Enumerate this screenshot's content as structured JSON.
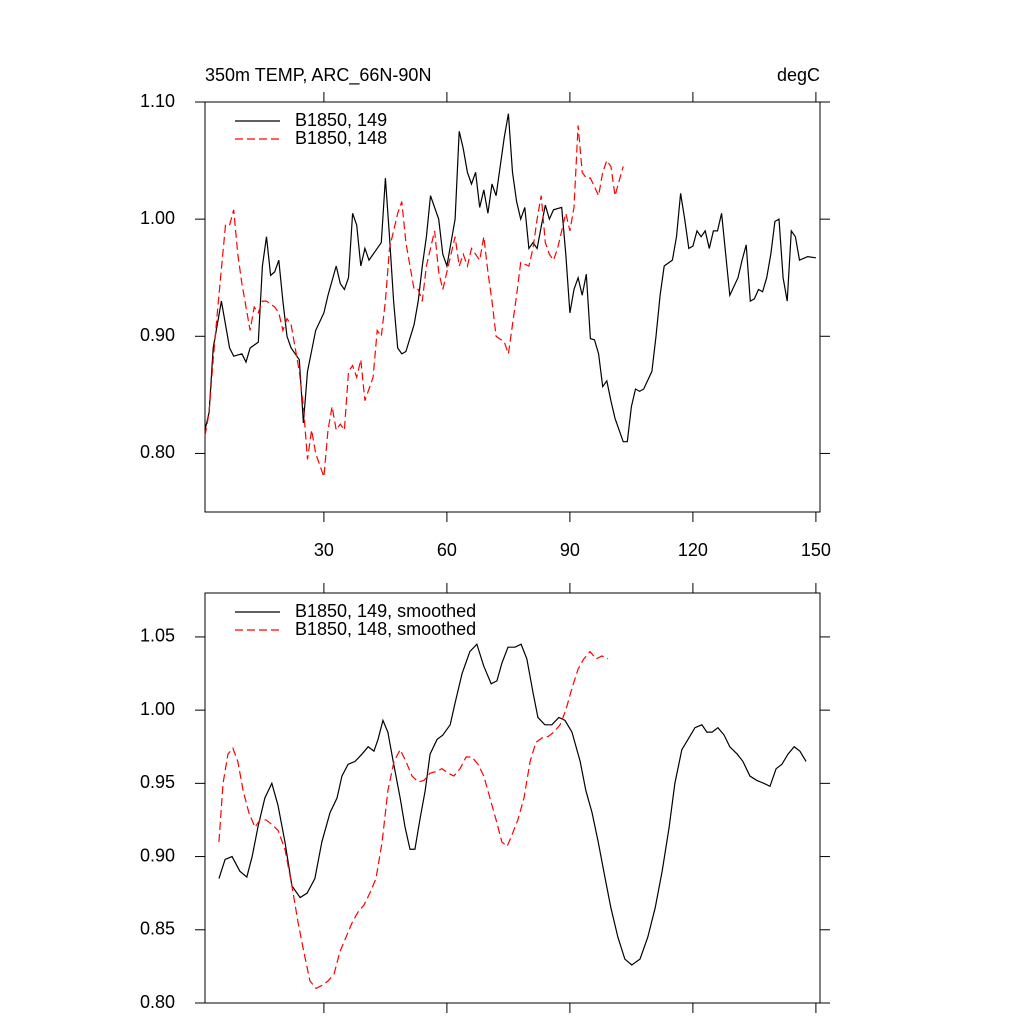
{
  "chart_data": [
    {
      "type": "line",
      "title": "350m TEMP, ARC_66N-90N",
      "units_label": "degC",
      "xlim": [
        1,
        151
      ],
      "xticks": [
        30,
        60,
        90,
        120,
        150
      ],
      "xtick_labels": true,
      "ylim": [
        0.75,
        1.1
      ],
      "yticks": [
        {
          "value": 0.8,
          "label": "0.80"
        },
        {
          "value": 0.9,
          "label": "0.90"
        },
        {
          "value": 1.0,
          "label": "1.00"
        },
        {
          "value": 1.1,
          "label": "1.10"
        }
      ],
      "legend": "top-left",
      "series": [
        {
          "name": "B1850, 149",
          "color": "#000000",
          "dashed": false,
          "x": [
            1,
            2,
            3,
            5,
            7,
            8,
            10,
            11,
            12,
            14,
            15,
            16,
            17,
            18,
            19,
            20,
            21,
            22,
            24,
            25,
            26,
            28,
            30,
            31,
            33,
            34,
            35,
            36,
            37,
            38,
            39,
            40,
            41,
            43,
            44,
            45,
            46,
            47,
            48,
            49,
            50,
            52,
            53,
            54,
            55,
            56,
            58,
            59,
            60,
            61,
            62,
            63,
            64,
            65,
            66,
            67,
            68,
            69,
            70,
            71,
            72,
            74,
            75,
            76,
            77,
            78,
            79,
            80,
            81,
            82,
            84,
            85,
            86,
            88,
            89,
            90,
            91,
            92,
            93,
            94,
            95,
            96,
            97,
            98,
            99,
            100,
            101,
            103,
            104,
            105,
            106,
            107,
            108,
            110,
            111,
            112,
            113,
            115,
            116,
            117,
            118,
            119,
            120,
            121,
            122,
            123,
            124,
            125,
            126,
            127,
            128,
            129,
            131,
            132,
            133,
            134,
            135,
            136,
            137,
            138,
            139,
            140,
            141,
            142,
            143,
            144,
            145,
            146,
            148,
            150
          ],
          "values": [
            0.82,
            0.835,
            0.89,
            0.93,
            0.89,
            0.883,
            0.885,
            0.878,
            0.89,
            0.895,
            0.96,
            0.985,
            0.952,
            0.955,
            0.965,
            0.93,
            0.9,
            0.89,
            0.88,
            0.826,
            0.87,
            0.905,
            0.92,
            0.935,
            0.96,
            0.945,
            0.94,
            0.95,
            1.005,
            0.995,
            0.96,
            0.975,
            0.965,
            0.975,
            0.98,
            1.035,
            0.985,
            0.93,
            0.89,
            0.885,
            0.887,
            0.91,
            0.93,
            0.96,
            0.985,
            1.02,
            1.0,
            0.97,
            0.96,
            0.98,
            1.0,
            1.075,
            1.06,
            1.04,
            1.03,
            1.04,
            1.01,
            1.025,
            1.005,
            1.03,
            1.02,
            1.07,
            1.09,
            1.04,
            1.015,
            1.0,
            1.01,
            0.975,
            0.98,
            0.975,
            1.012,
            1.0,
            1.008,
            1.01,
            0.97,
            0.92,
            0.94,
            0.95,
            0.935,
            0.953,
            0.898,
            0.897,
            0.885,
            0.857,
            0.862,
            0.845,
            0.83,
            0.81,
            0.81,
            0.84,
            0.855,
            0.853,
            0.855,
            0.87,
            0.9,
            0.935,
            0.96,
            0.965,
            0.985,
            1.022,
            1.0,
            0.975,
            0.977,
            0.99,
            0.985,
            0.99,
            0.975,
            0.99,
            0.99,
            1.005,
            0.97,
            0.935,
            0.95,
            0.965,
            0.978,
            0.93,
            0.932,
            0.94,
            0.938,
            0.95,
            0.97,
            0.998,
            1.0,
            0.95,
            0.93,
            0.99,
            0.985,
            0.965,
            0.968,
            0.967
          ]
        },
        {
          "name": "B1850, 148",
          "color": "#ff0000",
          "dashed": true,
          "x": [
            1,
            2,
            3,
            4,
            6,
            7,
            8,
            9,
            10,
            12,
            13,
            14,
            15,
            16,
            18,
            19,
            20,
            21,
            22,
            24,
            25,
            26,
            27,
            28,
            30,
            31,
            32,
            33,
            34,
            35,
            36,
            37,
            38,
            39,
            40,
            42,
            43,
            44,
            45,
            46,
            48,
            49,
            50,
            51,
            52,
            53,
            54,
            55,
            57,
            58,
            59,
            60,
            62,
            63,
            64,
            65,
            66,
            68,
            69,
            70,
            71,
            72,
            74,
            75,
            76,
            77,
            78,
            80,
            81,
            82,
            83,
            84,
            85,
            86,
            87,
            88,
            89,
            90,
            91,
            92,
            93,
            94,
            95,
            97,
            98,
            99,
            100,
            101,
            103
          ],
          "values": [
            0.815,
            0.835,
            0.88,
            0.92,
            0.995,
            0.995,
            1.008,
            0.97,
            0.945,
            0.905,
            0.925,
            0.92,
            0.93,
            0.93,
            0.925,
            0.92,
            0.905,
            0.915,
            0.91,
            0.87,
            0.84,
            0.795,
            0.82,
            0.8,
            0.78,
            0.82,
            0.84,
            0.82,
            0.825,
            0.82,
            0.87,
            0.875,
            0.865,
            0.88,
            0.845,
            0.865,
            0.905,
            0.9,
            0.93,
            0.975,
            1.005,
            1.015,
            0.98,
            0.96,
            0.94,
            0.94,
            0.93,
            0.96,
            0.99,
            0.955,
            0.94,
            0.955,
            0.985,
            0.96,
            0.97,
            0.96,
            0.975,
            0.965,
            0.985,
            0.955,
            0.93,
            0.9,
            0.895,
            0.885,
            0.91,
            0.935,
            0.963,
            0.96,
            0.975,
            1.0,
            1.02,
            0.98,
            0.97,
            0.965,
            0.975,
            0.99,
            1.005,
            0.99,
            1.01,
            1.08,
            1.04,
            1.035,
            1.035,
            1.02,
            1.04,
            1.05,
            1.045,
            1.02,
            1.045
          ]
        }
      ]
    },
    {
      "type": "line",
      "xlim": [
        1,
        151
      ],
      "xticks": [
        30,
        60,
        90,
        120,
        150
      ],
      "xtick_labels": false,
      "ylim": [
        0.8,
        1.08
      ],
      "yticks": [
        {
          "value": 0.8,
          "label": "0.80"
        },
        {
          "value": 0.85,
          "label": "0.85"
        },
        {
          "value": 0.9,
          "label": "0.90"
        },
        {
          "value": 0.95,
          "label": "0.95"
        },
        {
          "value": 1.0,
          "label": "1.00"
        },
        {
          "value": 1.05,
          "label": "1.05"
        }
      ],
      "legend": "top-left",
      "series": [
        {
          "name": "B1850, 149, smoothed",
          "color": "#000000",
          "dashed": false,
          "x": [
            4.4,
            5.9,
            7.6,
            9.5,
            11.2,
            12.5,
            13.9,
            15.6,
            17.3,
            18.8,
            20.5,
            22.2,
            24.2,
            25.9,
            27.8,
            29.5,
            31.5,
            33.2,
            34.4,
            35.9,
            37.6,
            39.3,
            40.8,
            42.2,
            43.2,
            44.4,
            45.6,
            46.9,
            48.6,
            49.8,
            51,
            52.2,
            53.4,
            54.7,
            55.9,
            57.6,
            59,
            60.8,
            62,
            63.7,
            65.6,
            67.3,
            69,
            70.8,
            72.2,
            73.4,
            74.9,
            76.6,
            78.1,
            79.5,
            81,
            82.2,
            83.9,
            85.6,
            87.3,
            88.8,
            90.5,
            92.5,
            93.9,
            95.4,
            96.9,
            98.6,
            100,
            101.7,
            103.4,
            105.1,
            107.1,
            109,
            110.8,
            112.5,
            114.2,
            115.6,
            117.3,
            118.8,
            120.5,
            122.2,
            123.4,
            124.7,
            126.1,
            127.6,
            129,
            130.8,
            132.2,
            133.9,
            135.6,
            137.3,
            138.8,
            140.3,
            141.7,
            143.2,
            144.7,
            146.1,
            147.6
          ],
          "values": [
            0.885,
            0.898,
            0.9,
            0.89,
            0.886,
            0.9,
            0.92,
            0.94,
            0.95,
            0.935,
            0.91,
            0.88,
            0.872,
            0.875,
            0.885,
            0.91,
            0.93,
            0.94,
            0.955,
            0.963,
            0.965,
            0.97,
            0.975,
            0.972,
            0.98,
            0.993,
            0.985,
            0.965,
            0.94,
            0.92,
            0.905,
            0.905,
            0.925,
            0.945,
            0.97,
            0.98,
            0.983,
            0.99,
            1.005,
            1.025,
            1.04,
            1.045,
            1.03,
            1.018,
            1.02,
            1.032,
            1.043,
            1.043,
            1.045,
            1.035,
            1.012,
            0.995,
            0.99,
            0.99,
            0.995,
            0.993,
            0.985,
            0.965,
            0.945,
            0.93,
            0.91,
            0.885,
            0.865,
            0.845,
            0.83,
            0.826,
            0.83,
            0.845,
            0.865,
            0.89,
            0.92,
            0.95,
            0.973,
            0.98,
            0.988,
            0.99,
            0.985,
            0.985,
            0.988,
            0.983,
            0.975,
            0.97,
            0.965,
            0.955,
            0.952,
            0.95,
            0.948,
            0.96,
            0.963,
            0.97,
            0.975,
            0.972,
            0.965
          ]
        },
        {
          "name": "B1850, 148, smoothed",
          "color": "#ff0000",
          "dashed": true,
          "x": [
            4.4,
            5.4,
            6.6,
            7.8,
            9,
            10.3,
            11.7,
            13.2,
            14.4,
            15.9,
            17.3,
            18.8,
            20.5,
            22.2,
            23.7,
            25.1,
            26.6,
            28.1,
            29.5,
            31,
            32.5,
            33.9,
            35.4,
            36.9,
            38.3,
            39.8,
            41.2,
            42.7,
            44.2,
            45.6,
            47.1,
            48.6,
            50,
            51.5,
            53,
            54.4,
            55.9,
            57.3,
            58.8,
            60.3,
            61.7,
            63.2,
            64.7,
            66.1,
            67.6,
            69,
            70.5,
            72,
            73.4,
            74.7,
            75.9,
            77.3,
            78.8,
            80.3,
            81.7,
            83.2,
            84.7,
            86.1,
            87.6,
            89,
            90.5,
            92,
            93.4,
            94.9,
            96.4,
            97.8,
            99.3
          ],
          "values": [
            0.91,
            0.95,
            0.97,
            0.974,
            0.965,
            0.945,
            0.93,
            0.92,
            0.925,
            0.925,
            0.922,
            0.918,
            0.905,
            0.88,
            0.855,
            0.835,
            0.815,
            0.81,
            0.812,
            0.815,
            0.82,
            0.835,
            0.845,
            0.855,
            0.862,
            0.867,
            0.875,
            0.885,
            0.91,
            0.945,
            0.965,
            0.973,
            0.965,
            0.955,
            0.951,
            0.952,
            0.957,
            0.958,
            0.96,
            0.957,
            0.955,
            0.96,
            0.968,
            0.968,
            0.963,
            0.955,
            0.94,
            0.925,
            0.91,
            0.907,
            0.915,
            0.925,
            0.94,
            0.965,
            0.978,
            0.981,
            0.982,
            0.985,
            0.99,
            1.0,
            1.015,
            1.028,
            1.035,
            1.04,
            1.035,
            1.037,
            1.035
          ]
        }
      ]
    }
  ]
}
